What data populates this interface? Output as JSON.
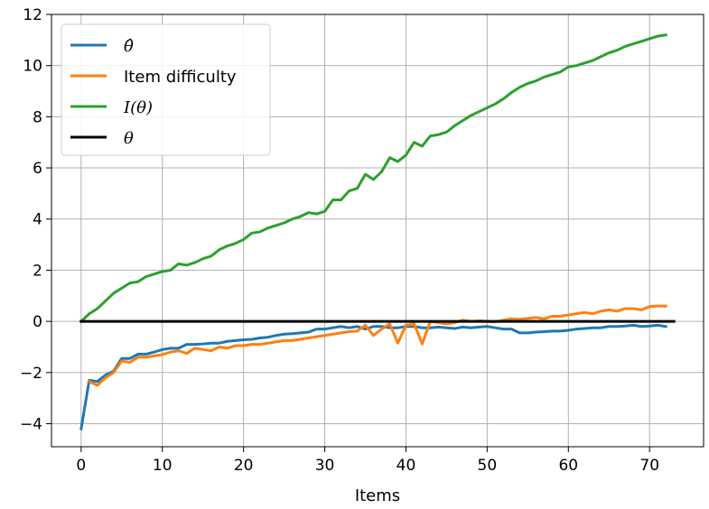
{
  "chart_data": {
    "type": "line",
    "title": "",
    "xlabel": "Items",
    "ylabel": "",
    "xlim": [
      -3.65,
      76.65
    ],
    "ylim": [
      -4.9,
      12
    ],
    "xticks": [
      0,
      10,
      20,
      30,
      40,
      50,
      60,
      70
    ],
    "yticks": [
      -4,
      -2,
      0,
      2,
      4,
      6,
      8,
      10,
      12
    ],
    "grid": true,
    "legend_position": "upper-left",
    "series": [
      {
        "key": "theta_hat",
        "name": "θ̂",
        "color": "#1f77b4",
        "x_start": 0,
        "values": [
          -4.2,
          -2.3,
          -2.35,
          -2.1,
          -1.95,
          -1.45,
          -1.45,
          -1.28,
          -1.28,
          -1.2,
          -1.1,
          -1.05,
          -1.05,
          -0.9,
          -0.9,
          -0.88,
          -0.85,
          -0.85,
          -0.78,
          -0.75,
          -0.72,
          -0.7,
          -0.65,
          -0.62,
          -0.55,
          -0.5,
          -0.48,
          -0.45,
          -0.42,
          -0.3,
          -0.3,
          -0.25,
          -0.2,
          -0.25,
          -0.2,
          -0.3,
          -0.2,
          -0.2,
          -0.25,
          -0.25,
          -0.2,
          -0.2,
          -0.25,
          -0.25,
          -0.22,
          -0.25,
          -0.28,
          -0.22,
          -0.25,
          -0.22,
          -0.2,
          -0.25,
          -0.3,
          -0.3,
          -0.45,
          -0.45,
          -0.42,
          -0.4,
          -0.38,
          -0.38,
          -0.35,
          -0.3,
          -0.28,
          -0.25,
          -0.25,
          -0.2,
          -0.2,
          -0.18,
          -0.15,
          -0.2,
          -0.18,
          -0.15,
          -0.2
        ]
      },
      {
        "key": "item_difficulty",
        "name": "Item difficulty",
        "color": "#ff7f0e",
        "x_start": 1,
        "values": [
          -2.35,
          -2.5,
          -2.2,
          -2.0,
          -1.55,
          -1.6,
          -1.4,
          -1.4,
          -1.35,
          -1.3,
          -1.2,
          -1.15,
          -1.25,
          -1.05,
          -1.1,
          -1.15,
          -1.0,
          -1.05,
          -0.95,
          -0.95,
          -0.9,
          -0.9,
          -0.85,
          -0.8,
          -0.75,
          -0.75,
          -0.7,
          -0.65,
          -0.6,
          -0.55,
          -0.5,
          -0.45,
          -0.4,
          -0.38,
          -0.15,
          -0.55,
          -0.3,
          -0.1,
          -0.85,
          -0.15,
          -0.1,
          -0.88,
          0.0,
          -0.05,
          -0.1,
          -0.05,
          0.05,
          0.0,
          0.02,
          0.0,
          -0.02,
          0.05,
          0.1,
          0.08,
          0.12,
          0.15,
          0.1,
          0.2,
          0.2,
          0.25,
          0.3,
          0.35,
          0.3,
          0.4,
          0.45,
          0.4,
          0.5,
          0.5,
          0.45,
          0.58,
          0.6,
          0.6
        ]
      },
      {
        "key": "information",
        "name": "I(θ)",
        "color": "#2ca02c",
        "x_start": 0,
        "values": [
          0.0,
          0.3,
          0.5,
          0.8,
          1.1,
          1.3,
          1.5,
          1.55,
          1.75,
          1.85,
          1.95,
          2.0,
          2.25,
          2.2,
          2.3,
          2.45,
          2.55,
          2.8,
          2.95,
          3.05,
          3.2,
          3.45,
          3.5,
          3.65,
          3.75,
          3.85,
          4.0,
          4.1,
          4.25,
          4.2,
          4.3,
          4.75,
          4.75,
          5.1,
          5.2,
          5.75,
          5.55,
          5.85,
          6.4,
          6.25,
          6.5,
          7.0,
          6.85,
          7.25,
          7.3,
          7.4,
          7.65,
          7.85,
          8.05,
          8.2,
          8.35,
          8.5,
          8.7,
          8.95,
          9.15,
          9.3,
          9.4,
          9.55,
          9.65,
          9.75,
          9.95,
          10.0,
          10.1,
          10.2,
          10.35,
          10.5,
          10.6,
          10.75,
          10.85,
          10.95,
          11.05,
          11.15,
          11.2
        ]
      },
      {
        "key": "theta",
        "name": "θ",
        "color": "#000000",
        "x": [
          0,
          73
        ],
        "values": [
          0,
          0
        ]
      }
    ]
  }
}
